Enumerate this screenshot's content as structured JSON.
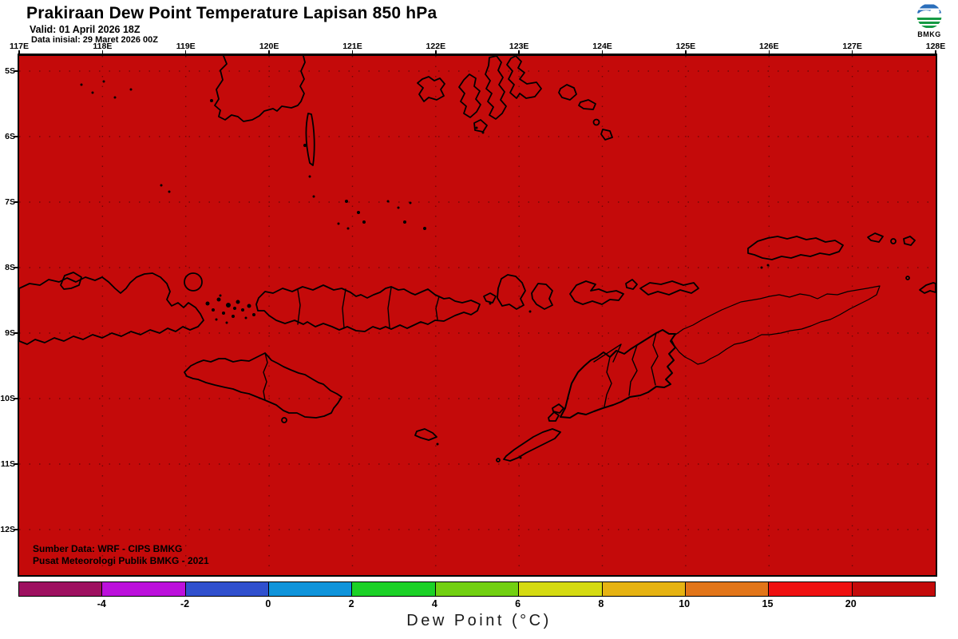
{
  "header": {
    "title": "Prakiraan Dew Point Temperature Lapisan 850 hPa",
    "valid_line": "Valid: 01 April 2026 18Z",
    "init_line": "Data inisial: 29 Maret 2026 00Z",
    "logo_caption": "BMKG"
  },
  "map": {
    "lon_labels": [
      "117E",
      "118E",
      "119E",
      "120E",
      "121E",
      "122E",
      "123E",
      "124E",
      "125E",
      "126E",
      "127E",
      "128E"
    ],
    "lat_labels": [
      "5S",
      "6S",
      "7S",
      "8S",
      "9S",
      "10S",
      "11S",
      "12S"
    ],
    "background_color": "#C40A0A",
    "coastline_color": "#000000",
    "graticule_color": "#6E0808",
    "attribution_line1": "Sumber Data: WRF - CIPS BMKG",
    "attribution_line2": "Pusat Meteorologi Publik BMKG - 2021"
  },
  "colorbar": {
    "title": "Dew Point (°C)",
    "tick_labels": [
      "-4",
      "-2",
      "0",
      "2",
      "4",
      "6",
      "8",
      "10",
      "15",
      "20"
    ],
    "segment_colors": [
      "#9E1060",
      "#BC10DC",
      "#3050CE",
      "#0F94DB",
      "#1BD126",
      "#72D011",
      "#D5DB12",
      "#E6B312",
      "#E27519",
      "#EF1010",
      "#C40A0A"
    ]
  },
  "chart_data": {
    "type": "heatmap",
    "title": "Prakiraan Dew Point Temperature Lapisan 850 hPa",
    "valid_time": "01 April 2026 18Z",
    "initial_time": "29 Maret 2026 00Z",
    "region": "Nusa Tenggara / Lesser Sunda Islands",
    "lon_range_deg_east": [
      117,
      128
    ],
    "lat_range_deg_south": [
      4.7,
      12.8
    ],
    "colorbar_label": "Dew Point (°C)",
    "colorbar_ticks": [
      -4,
      -2,
      0,
      2,
      4,
      6,
      8,
      10,
      15,
      20
    ],
    "field_summary": "Uniform field: entire mapped domain falls in the highest class (> 20 °C, dark red)"
  }
}
